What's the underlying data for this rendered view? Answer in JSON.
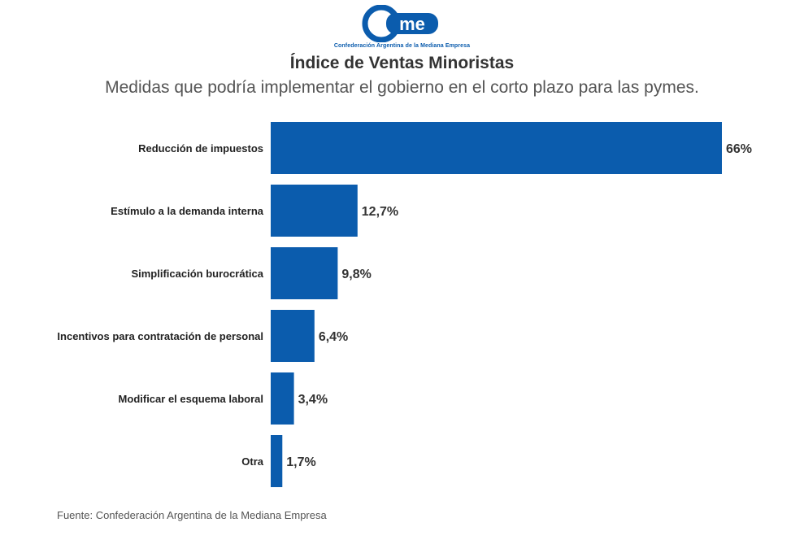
{
  "logo": {
    "wordmark": "came",
    "subtitle": "Confederación Argentina de la Mediana Empresa"
  },
  "header": {
    "title": "Índice de Ventas Minoristas",
    "subtitle": "Medidas que podría implementar el gobierno en el corto plazo para las pymes."
  },
  "chart_data": {
    "type": "bar",
    "orientation": "horizontal",
    "categories": [
      "Reducción de impuestos",
      "Estímulo a la demanda interna",
      "Simplificación burocrática",
      "Incentivos para contratación de personal",
      "Modificar el esquema laboral",
      "Otra"
    ],
    "values": [
      66,
      12.7,
      9.8,
      6.4,
      3.4,
      1.7
    ],
    "value_labels": [
      "66%",
      "12,7%",
      "9,8%",
      "6,4%",
      "3,4%",
      "1,7%"
    ],
    "color": "#0b5cad",
    "title": "Índice de Ventas Minoristas",
    "subtitle": "Medidas que podría implementar el gobierno en el corto plazo para las pymes.",
    "xlabel": "",
    "ylabel": "",
    "xlim": [
      0,
      66
    ],
    "grid": false,
    "legend": "none"
  },
  "footer": {
    "source": "Fuente: Confederación Argentina de la Mediana Empresa"
  }
}
